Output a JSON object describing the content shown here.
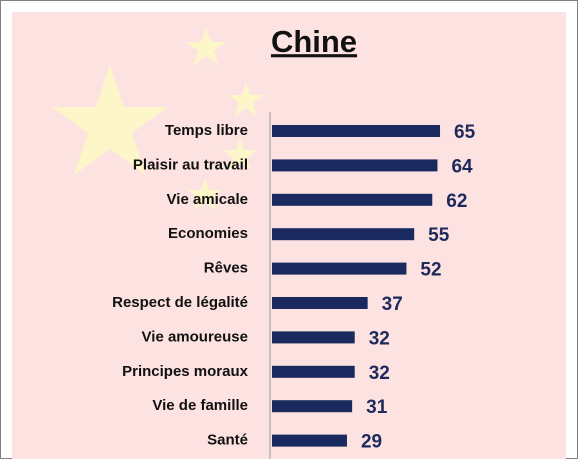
{
  "chart_data": {
    "type": "bar",
    "orientation": "horizontal",
    "title": "Chine",
    "categories": [
      "Temps libre",
      "Plaisir au travail",
      "Vie amicale",
      "Economies",
      "Rêves",
      "Respect de légalité",
      "Vie amoureuse",
      "Principes moraux",
      "Vie de famille",
      "Santé"
    ],
    "values": [
      65,
      64,
      62,
      55,
      52,
      37,
      32,
      32,
      31,
      29
    ],
    "color": "#1a2a5e"
  }
}
